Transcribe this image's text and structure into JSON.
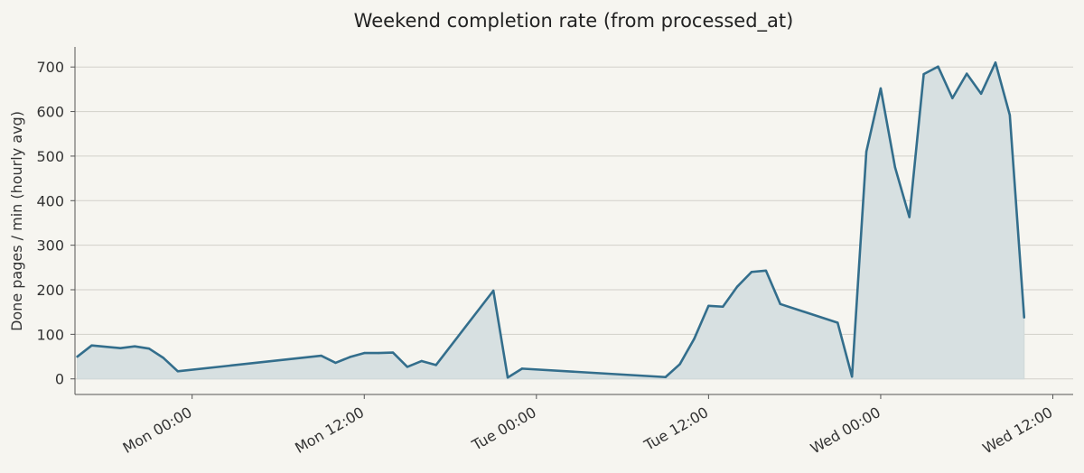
{
  "chart_data": {
    "type": "area",
    "title": "Weekend completion rate (from processed_at)",
    "xlabel": "",
    "ylabel": "Done pages / min (hourly avg)",
    "ylim": [
      -35,
      745
    ],
    "yticks": [
      0,
      100,
      200,
      300,
      400,
      500,
      600,
      700
    ],
    "xlim": [
      "Sun 15:50",
      "Wed 13:25"
    ],
    "xticks": [
      {
        "label": "Mon 00:00",
        "value": "Mon 00:00"
      },
      {
        "label": "Mon 12:00",
        "value": "Mon 12:00"
      },
      {
        "label": "Tue 00:00",
        "value": "Tue 00:00"
      },
      {
        "label": "Tue 12:00",
        "value": "Tue 12:00"
      },
      {
        "label": "Wed 00:00",
        "value": "Wed 00:00"
      },
      {
        "label": "Wed 12:00",
        "value": "Wed 12:00"
      }
    ],
    "grid": "horizontal",
    "line_color": "#336e8c",
    "fill_color": "#d7e0e1",
    "series": [
      {
        "name": "",
        "points": [
          {
            "x": "Sun 16:00",
            "y": 50
          },
          {
            "x": "Sun 17:00",
            "y": 75
          },
          {
            "x": "Sun 19:00",
            "y": 69
          },
          {
            "x": "Sun 20:00",
            "y": 73
          },
          {
            "x": "Sun 21:00",
            "y": 68
          },
          {
            "x": "Sun 22:00",
            "y": 47
          },
          {
            "x": "Sun 23:00",
            "y": 17
          },
          {
            "x": "Mon 09:00",
            "y": 52
          },
          {
            "x": "Mon 10:00",
            "y": 36
          },
          {
            "x": "Mon 11:00",
            "y": 49
          },
          {
            "x": "Mon 12:00",
            "y": 58
          },
          {
            "x": "Mon 13:00",
            "y": 58
          },
          {
            "x": "Mon 14:00",
            "y": 59
          },
          {
            "x": "Mon 15:00",
            "y": 27
          },
          {
            "x": "Mon 16:00",
            "y": 40
          },
          {
            "x": "Mon 17:00",
            "y": 31
          },
          {
            "x": "Mon 21:00",
            "y": 198
          },
          {
            "x": "Mon 22:00",
            "y": 3
          },
          {
            "x": "Mon 23:00",
            "y": 23
          },
          {
            "x": "Tue 09:00",
            "y": 4
          },
          {
            "x": "Tue 10:00",
            "y": 33
          },
          {
            "x": "Tue 11:00",
            "y": 90
          },
          {
            "x": "Tue 12:00",
            "y": 164
          },
          {
            "x": "Tue 13:00",
            "y": 162
          },
          {
            "x": "Tue 14:00",
            "y": 207
          },
          {
            "x": "Tue 15:00",
            "y": 240
          },
          {
            "x": "Tue 16:00",
            "y": 243
          },
          {
            "x": "Tue 17:00",
            "y": 168
          },
          {
            "x": "Tue 21:00",
            "y": 126
          },
          {
            "x": "Tue 22:00",
            "y": 5
          },
          {
            "x": "Tue 23:00",
            "y": 510
          },
          {
            "x": "Wed 00:00",
            "y": 652
          },
          {
            "x": "Wed 01:00",
            "y": 475
          },
          {
            "x": "Wed 02:00",
            "y": 363
          },
          {
            "x": "Wed 03:00",
            "y": 684
          },
          {
            "x": "Wed 04:00",
            "y": 701
          },
          {
            "x": "Wed 05:00",
            "y": 630
          },
          {
            "x": "Wed 06:00",
            "y": 685
          },
          {
            "x": "Wed 07:00",
            "y": 640
          },
          {
            "x": "Wed 08:00",
            "y": 710
          },
          {
            "x": "Wed 09:00",
            "y": 592
          },
          {
            "x": "Wed 10:00",
            "y": 138
          }
        ]
      }
    ]
  }
}
